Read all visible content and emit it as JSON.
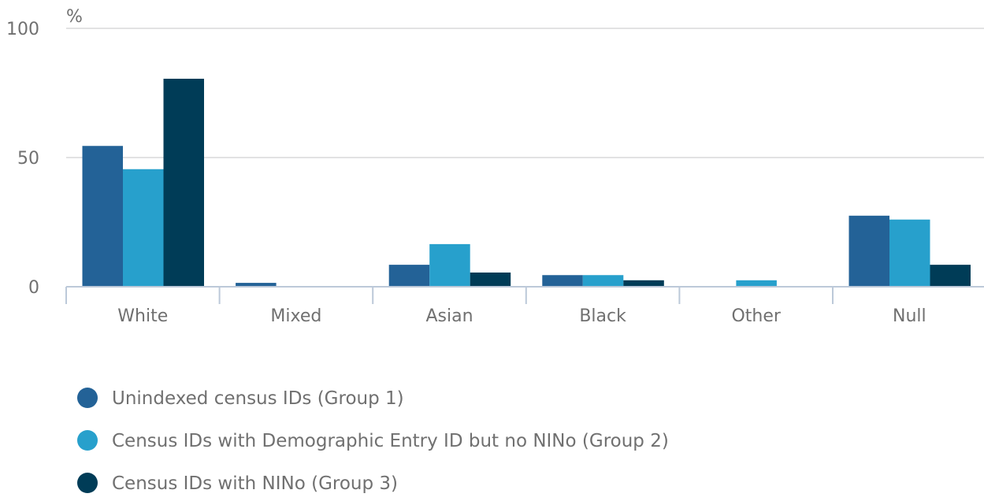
{
  "chart_data": {
    "type": "bar",
    "ylabel": "%",
    "ylim": [
      0,
      100
    ],
    "yticks": [
      0,
      50,
      100
    ],
    "grid": true,
    "legend_position": "bottom-left",
    "categories": [
      "White",
      "Mixed",
      "Asian",
      "Black",
      "Other",
      "Null"
    ],
    "series": [
      {
        "name": "Unindexed census IDs (Group 1)",
        "color": "#236297",
        "values": [
          54.5,
          1.5,
          8.5,
          4.5,
          0,
          27.5
        ]
      },
      {
        "name": "Census IDs with Demographic Entry ID but no NINo (Group 2)",
        "color": "#27a0cc",
        "values": [
          45.5,
          0,
          16.5,
          4.5,
          2.5,
          26
        ]
      },
      {
        "name": "Census IDs with NINo (Group 3)",
        "color": "#003c57",
        "values": [
          80.5,
          0,
          5.5,
          2.5,
          0,
          8.5
        ]
      }
    ]
  }
}
